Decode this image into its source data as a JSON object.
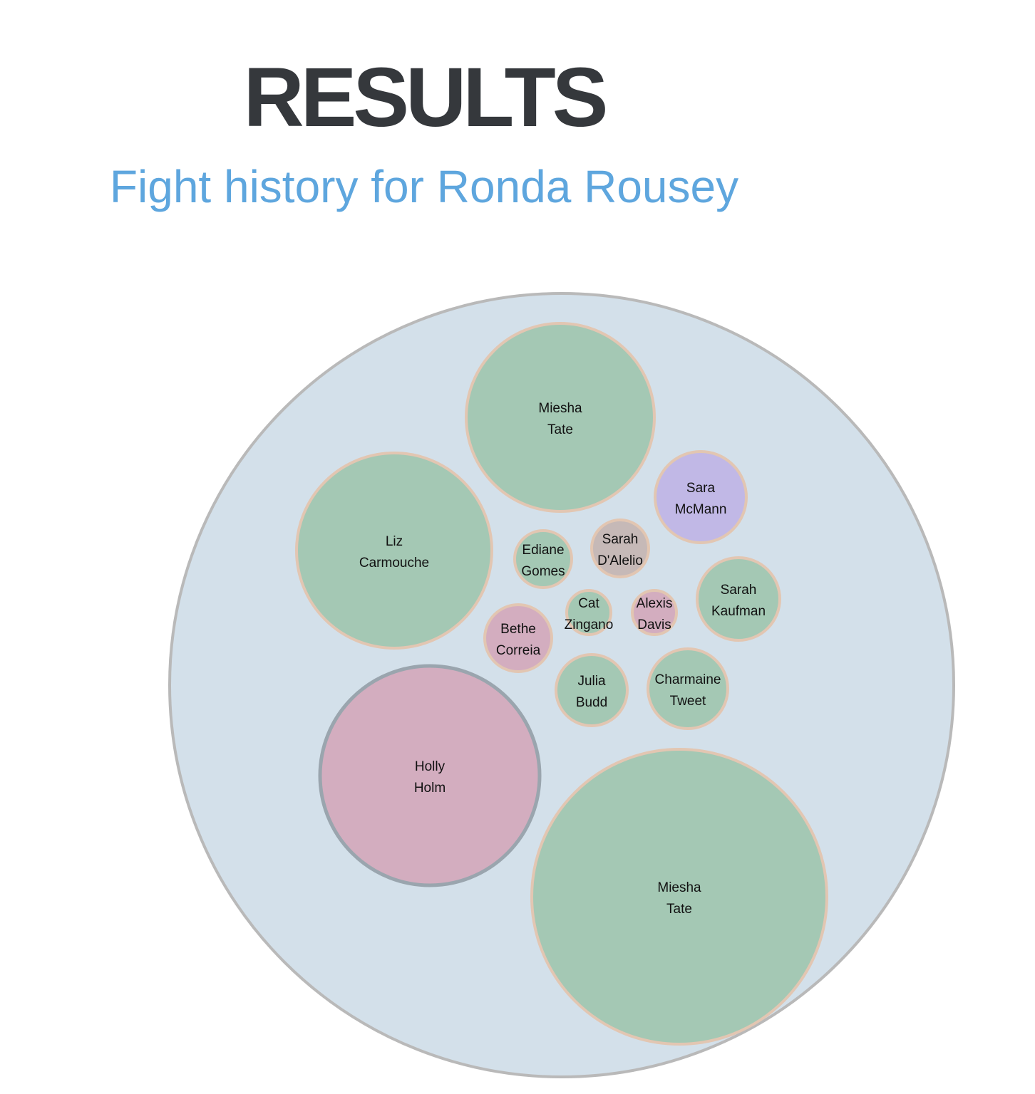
{
  "header": {
    "title": "RESULTS",
    "subtitle": "Fight history for Ronda Rousey"
  },
  "colors": {
    "title": "#35383c",
    "subtitle": "#5ea6de",
    "root_fill": "#d3e0ea",
    "root_stroke": "#b9b9b9",
    "leaf_stroke": "#e2c6b2",
    "win": "#a4c8b4",
    "loss": "#d3adbf",
    "purple": "#c1b8e6",
    "gray": "#c6b9b7",
    "loss_stroke": "#9aa5ae"
  },
  "chart_data": {
    "type": "bubble",
    "root": "Fight history for Ronda Rousey",
    "nodes": [
      {
        "name": "Miesha Tate",
        "lines": [
          "Miesha",
          "Tate"
        ],
        "category": "win",
        "value": 100
      },
      {
        "name": "Sara McMann",
        "lines": [
          "Sara",
          "McMann"
        ],
        "category": "purple",
        "value": 25
      },
      {
        "name": "Liz Carmouche",
        "lines": [
          "Liz",
          "Carmouche"
        ],
        "category": "win",
        "value": 108
      },
      {
        "name": "Ediane Gomes",
        "lines": [
          "Ediane",
          "Gomes"
        ],
        "category": "win",
        "value": 9
      },
      {
        "name": "Sarah D'Alelio",
        "lines": [
          "Sarah",
          "D'Alelio"
        ],
        "category": "gray",
        "value": 9
      },
      {
        "name": "Sarah Kaufman",
        "lines": [
          "Sarah",
          "Kaufman"
        ],
        "category": "win",
        "value": 20
      },
      {
        "name": "Cat Zingano",
        "lines": [
          "Cat",
          "Zingano"
        ],
        "category": "win",
        "value": 5
      },
      {
        "name": "Alexis Davis",
        "lines": [
          "Alexis",
          "Davis"
        ],
        "category": "loss",
        "value": 5
      },
      {
        "name": "Bethe Correia",
        "lines": [
          "Bethe",
          "Correia"
        ],
        "category": "loss",
        "value": 12
      },
      {
        "name": "Julia Budd",
        "lines": [
          "Julia",
          "Budd"
        ],
        "category": "win",
        "value": 14
      },
      {
        "name": "Charmaine Tweet",
        "lines": [
          "Charmaine",
          "Tweet"
        ],
        "category": "win",
        "value": 18
      },
      {
        "name": "Holly Holm",
        "lines": [
          "Holly",
          "Holm"
        ],
        "category": "loss",
        "value": 140
      },
      {
        "name": "Miesha Tate",
        "lines": [
          "Miesha",
          "Tate"
        ],
        "category": "win",
        "value": 260
      }
    ]
  }
}
